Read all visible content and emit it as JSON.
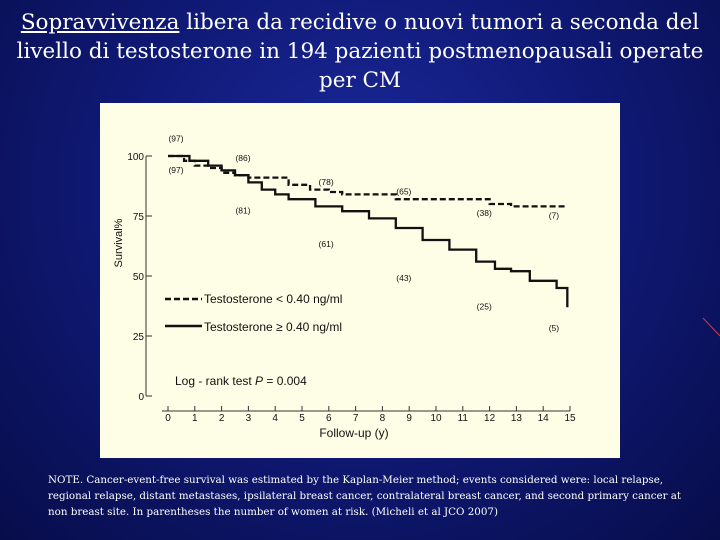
{
  "slide": {
    "title_underlined": "Sopravvivenza",
    "title_rest": " libera da recidive o nuovi tumori a seconda del livello di testosterone  in 194 pazienti postmenopausali operate per CM",
    "note": "NOTE. Cancer-event-free survival was estimated by the Kaplan-Meier method; events considered were: local relapse, regional relapse, distant metastases, ipsilateral breast cancer, contralateral breast cancer, and second primary cancer at non breast site. In parentheses the number of  women at risk.  (Micheli et al JCO 2007)"
  },
  "chart_data": {
    "type": "line",
    "ylabel": "Survival%",
    "xlabel": "Follow-up (y)",
    "xlim": [
      0,
      15
    ],
    "ylim": [
      0,
      100
    ],
    "x_ticks": [
      "0",
      "1",
      "2",
      "3",
      "4",
      "5",
      "6",
      "7",
      "8",
      "9",
      "10",
      "11",
      "12",
      "13",
      "14",
      "15"
    ],
    "y_ticks": [
      "0",
      "25",
      "50",
      "75",
      "100"
    ],
    "series": [
      {
        "name": "Testosterone < 0.40 ng/ml",
        "style": "dashed",
        "x": [
          0,
          0.6,
          1.0,
          1.5,
          2.0,
          2.5,
          3.0,
          3.8,
          4.5,
          5.3,
          6.0,
          6.5,
          7.5,
          8.5,
          9.8,
          11,
          12,
          12.8,
          14.9
        ],
        "y": [
          100,
          98,
          96,
          95,
          93,
          92,
          91,
          91,
          88,
          86,
          85,
          84,
          84,
          82,
          82,
          82,
          80,
          79,
          79
        ]
      },
      {
        "name": "Testosterone ≥ 0.40 ng/ml",
        "style": "solid",
        "x": [
          0,
          0.8,
          1.5,
          2.0,
          2.5,
          3.0,
          3.5,
          4.0,
          4.5,
          5.5,
          6.5,
          7.5,
          8.5,
          9.5,
          10.5,
          11.5,
          12.2,
          12.8,
          13.5,
          14.5,
          14.9
        ],
        "y": [
          100,
          98,
          96,
          94,
          92,
          89,
          86,
          84,
          82,
          79,
          77,
          74,
          70,
          65,
          61,
          56,
          53,
          52,
          48,
          45,
          37
        ]
      }
    ],
    "at_risk_labels": [
      {
        "text": "(97)",
        "x": 0.3,
        "y": 106
      },
      {
        "text": "(86)",
        "x": 2.8,
        "y": 98
      },
      {
        "text": "(97)",
        "x": 0.3,
        "y": 93
      },
      {
        "text": "(78)",
        "x": 5.9,
        "y": 88
      },
      {
        "text": "(65)",
        "x": 8.8,
        "y": 84
      },
      {
        "text": "(81)",
        "x": 2.8,
        "y": 76
      },
      {
        "text": "(38)",
        "x": 11.8,
        "y": 75
      },
      {
        "text": "(7)",
        "x": 14.4,
        "y": 74
      },
      {
        "text": "(61)",
        "x": 5.9,
        "y": 62
      },
      {
        "text": "(43)",
        "x": 8.8,
        "y": 48
      },
      {
        "text": "(25)",
        "x": 11.8,
        "y": 36
      },
      {
        "text": "(5)",
        "x": 14.4,
        "y": 27
      }
    ],
    "legend": [
      {
        "label": "Testosterone < 0.40 ng/ml",
        "style": "dashed"
      },
      {
        "label": "Testosterone ≥ 0.40 ng/ml",
        "style": "solid"
      }
    ],
    "annotation": {
      "prefix": "Log - rank test  ",
      "p_label": "P",
      "p_value": " = 0.004"
    }
  }
}
